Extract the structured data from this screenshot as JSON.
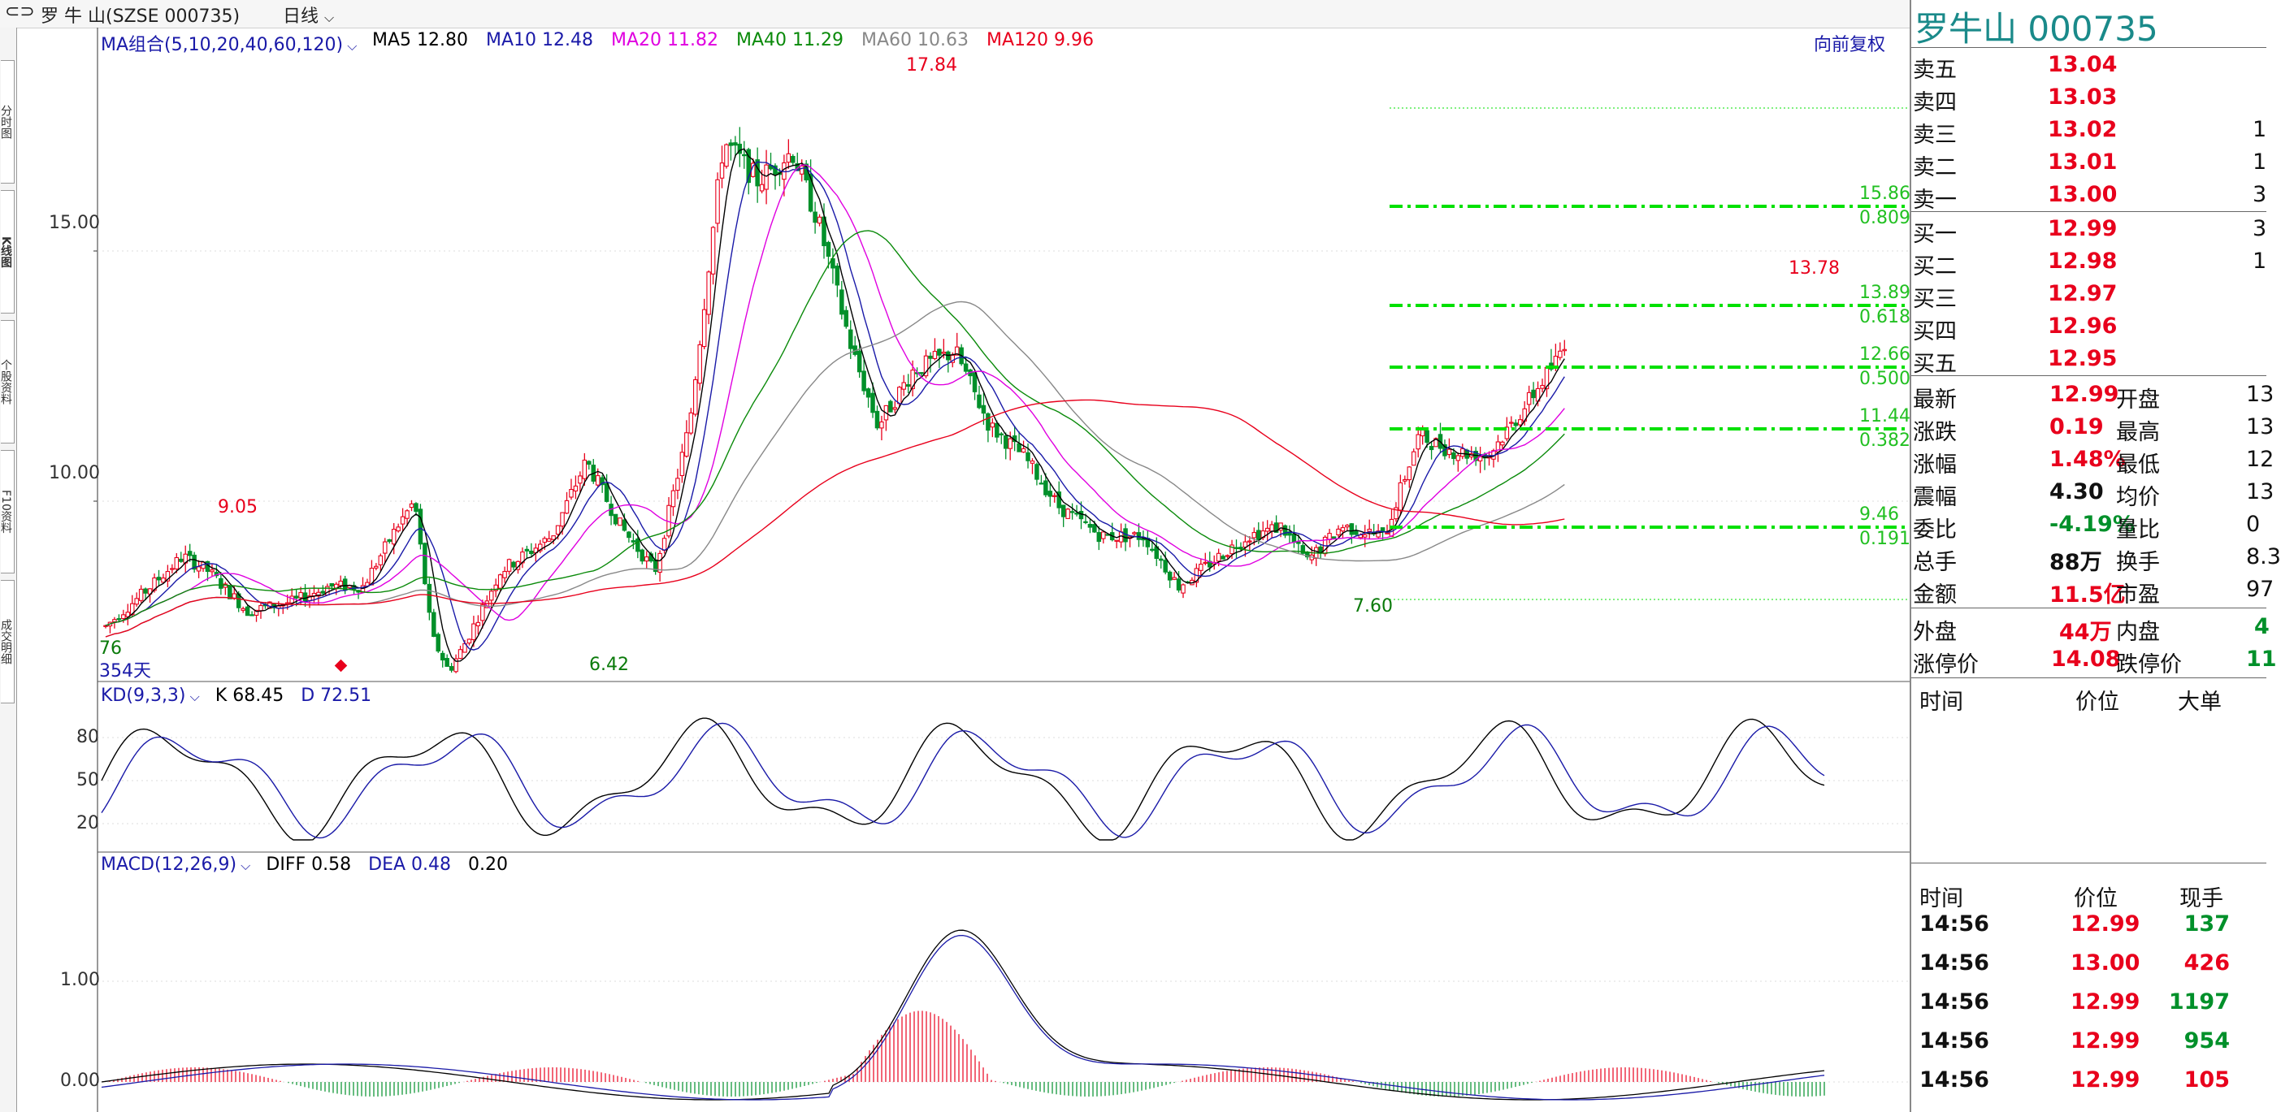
{
  "header": {
    "stock_title": "罗 牛 山(SZSE 000735)",
    "period": "日线"
  },
  "left_tabs": [
    "分时图",
    "K线图",
    "个股资料",
    "F10资料",
    "成交明细"
  ],
  "main_chart": {
    "ma_label": "MA组合(5,10,20,40,60,120)",
    "ma_values": [
      {
        "name": "MA5 12.80",
        "color": "#000000"
      },
      {
        "name": "MA10 12.48",
        "color": "#1a1aa8"
      },
      {
        "name": "MA20 11.82",
        "color": "#e000e0"
      },
      {
        "name": "MA40 11.29",
        "color": "#0a8a0a"
      },
      {
        "name": "MA60 10.63",
        "color": "#888888"
      },
      {
        "name": "MA120 9.96",
        "color": "#e8001c"
      }
    ],
    "adjust_label": "向前复权",
    "y_labels": [
      "15.00",
      "10.00"
    ],
    "annotations": {
      "high": "17.84",
      "low1": "9.05",
      "low2": "6.42",
      "low3": "7.60",
      "recent_high": "13.78",
      "left_edge": "76",
      "days": "354天"
    },
    "fib_levels": [
      {
        "price": "15.86",
        "ratio": "0.809"
      },
      {
        "price": "13.89",
        "ratio": "0.618"
      },
      {
        "price": "12.66",
        "ratio": "0.500"
      },
      {
        "price": "11.44",
        "ratio": "0.382"
      },
      {
        "price": "9.46",
        "ratio": "0.191"
      }
    ]
  },
  "kd_panel": {
    "label": "KD(9,3,3)",
    "k": "K 68.45",
    "d": "D 72.51",
    "y_labels": [
      "80",
      "50",
      "20"
    ]
  },
  "macd_panel": {
    "label": "MACD(12,26,9)",
    "diff": "DIFF 0.58",
    "dea": "DEA 0.48",
    "macd": "0.20",
    "y_labels": [
      "1.00",
      "0.00"
    ]
  },
  "quote": {
    "title": "罗牛山 000735",
    "sell": [
      {
        "label": "卖五",
        "price": "13.04",
        "vol": ""
      },
      {
        "label": "卖四",
        "price": "13.03",
        "vol": ""
      },
      {
        "label": "卖三",
        "price": "13.02",
        "vol": "1"
      },
      {
        "label": "卖二",
        "price": "13.01",
        "vol": "1"
      },
      {
        "label": "卖一",
        "price": "13.00",
        "vol": "3"
      }
    ],
    "buy": [
      {
        "label": "买一",
        "price": "12.99",
        "vol": "3"
      },
      {
        "label": "买二",
        "price": "12.98",
        "vol": "1"
      },
      {
        "label": "买三",
        "price": "12.97",
        "vol": ""
      },
      {
        "label": "买四",
        "price": "12.96",
        "vol": ""
      },
      {
        "label": "买五",
        "price": "12.95",
        "vol": ""
      }
    ],
    "stats": [
      {
        "l1": "最新",
        "v1": "12.99",
        "c1": "red",
        "l2": "开盘",
        "v2": "13"
      },
      {
        "l1": "涨跌",
        "v1": "0.19",
        "c1": "red",
        "l2": "最高",
        "v2": "13"
      },
      {
        "l1": "涨幅",
        "v1": "1.48%",
        "c1": "red",
        "l2": "最低",
        "v2": "12"
      },
      {
        "l1": "震幅",
        "v1": "4.30",
        "c1": "blk",
        "l2": "均价",
        "v2": "13"
      },
      {
        "l1": "委比",
        "v1": "-4.19%",
        "c1": "grn",
        "l2": "量比",
        "v2": "0"
      },
      {
        "l1": "总手",
        "v1": "88万",
        "c1": "blk",
        "l2": "换手",
        "v2": "8.3"
      },
      {
        "l1": "金额",
        "v1": "11.5亿",
        "c1": "red",
        "l2": "市盈",
        "v2": "97"
      }
    ],
    "outer": {
      "l1": "外盘",
      "v1": "44万",
      "l2": "内盘",
      "v2": "4"
    },
    "limit": {
      "l1": "涨停价",
      "v1": "14.08",
      "l2": "跌停价",
      "v2": "11"
    },
    "big_header": {
      "time": "时间",
      "price": "价位",
      "big": "大单"
    },
    "tick_header": {
      "time": "时间",
      "price": "价位",
      "vol": "现手"
    },
    "ticks": [
      {
        "time": "14:56",
        "price": "12.99",
        "pc": "red",
        "vol": "137",
        "vc": "grn"
      },
      {
        "time": "14:56",
        "price": "13.00",
        "pc": "red",
        "vol": "426",
        "vc": "red"
      },
      {
        "time": "14:56",
        "price": "12.99",
        "pc": "red",
        "vol": "1197",
        "vc": "grn"
      },
      {
        "time": "14:56",
        "price": "12.99",
        "pc": "red",
        "vol": "954",
        "vc": "grn"
      },
      {
        "time": "14:56",
        "price": "12.99",
        "pc": "red",
        "vol": "105",
        "vc": "red"
      }
    ]
  },
  "colors": {
    "up": "#e8001c",
    "down": "#00902a",
    "fib": "#00e000",
    "ma5": "#000000",
    "ma10": "#1a1aa8",
    "ma20": "#e000e0",
    "ma40": "#0a8a0a",
    "ma60": "#888888",
    "ma120": "#e8001c"
  }
}
